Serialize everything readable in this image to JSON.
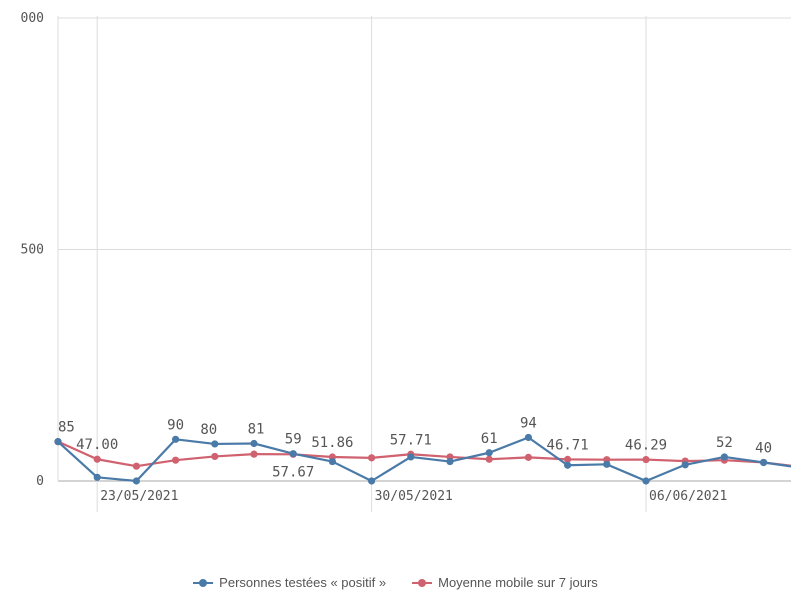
{
  "chart_data": {
    "type": "line",
    "y_ticks": [
      "0",
      "500",
      "000"
    ],
    "ylim": [
      0,
      1000
    ],
    "x_tick_labels": [
      {
        "label": "23/05/2021",
        "index": 1
      },
      {
        "label": "30/05/2021",
        "index": 8
      },
      {
        "label": "06/06/2021",
        "index": 15
      }
    ],
    "x_start_date": "22/05/2021",
    "grid": true,
    "legend_position": "bottom",
    "series": [
      {
        "name": "Personnes testées « positif »",
        "color": "#4a7aa8",
        "values": [
          85,
          8,
          0,
          90,
          80,
          81,
          59,
          42,
          0,
          52,
          42,
          61,
          94,
          34,
          36,
          0,
          35,
          52,
          40,
          28
        ]
      },
      {
        "name": "Moyenne mobile sur 7 jours",
        "color": "#d0616f",
        "values": [
          85,
          47.0,
          32,
          45,
          53,
          58,
          57.67,
          51.86,
          50,
          57.71,
          52,
          47,
          51,
          46.71,
          46,
          46.29,
          43,
          45,
          40,
          30
        ]
      }
    ],
    "data_labels": [
      {
        "text": "85",
        "series": 0,
        "index": 0
      },
      {
        "text": "47.00",
        "series": 1,
        "index": 1
      },
      {
        "text": "90",
        "series": 0,
        "index": 3
      },
      {
        "text": "80",
        "series": 0,
        "index": 4
      },
      {
        "text": "81",
        "series": 0,
        "index": 5
      },
      {
        "text": "57.67",
        "series": 1,
        "index": 6
      },
      {
        "text": "59",
        "series": 0,
        "index": 6
      },
      {
        "text": "51.86",
        "series": 1,
        "index": 7
      },
      {
        "text": "57.71",
        "series": 1,
        "index": 9
      },
      {
        "text": "61",
        "series": 0,
        "index": 11
      },
      {
        "text": "94",
        "series": 0,
        "index": 12
      },
      {
        "text": "46.71",
        "series": 1,
        "index": 13
      },
      {
        "text": "46.29",
        "series": 1,
        "index": 15
      },
      {
        "text": "52",
        "series": 0,
        "index": 17
      },
      {
        "text": "40",
        "series": 0,
        "index": 18
      }
    ]
  },
  "legend": [
    {
      "label": "Personnes testées « positif »",
      "color": "#4a7aa8"
    },
    {
      "label": "Moyenne mobile sur 7 jours",
      "color": "#d0616f"
    }
  ]
}
